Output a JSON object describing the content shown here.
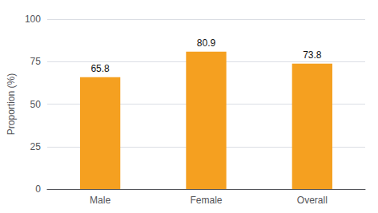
{
  "chart_data": {
    "type": "bar",
    "categories": [
      "Male",
      "Female",
      "Overall"
    ],
    "values": [
      65.8,
      80.9,
      73.8
    ],
    "ylabel": "Proportion (%)",
    "color": "#F5A020",
    "ylim": [
      0,
      100
    ],
    "yticks": [
      0,
      25,
      50,
      75,
      100
    ],
    "grid": true,
    "data_labels": true
  }
}
